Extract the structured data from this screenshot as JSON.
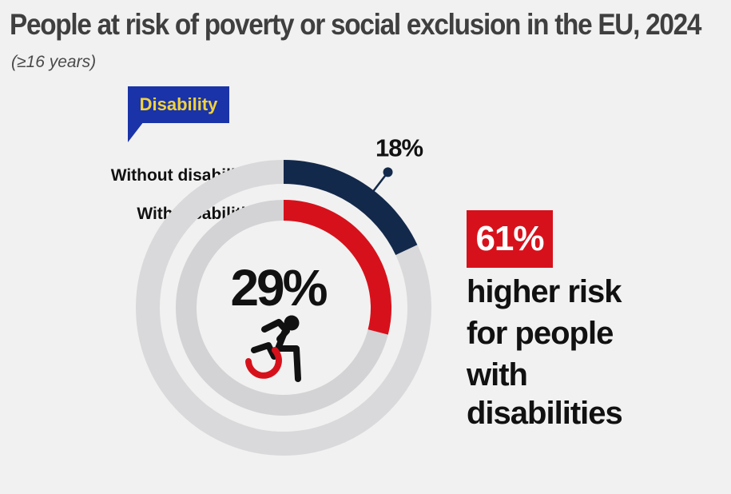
{
  "title": "People at risk of poverty or social exclusion in the EU, 2024",
  "subtitle": "(≥16 years)",
  "tag": "Disability",
  "highlight_value": "61%",
  "highlight_text": [
    "higher risk",
    "for people",
    "with",
    "disabilities"
  ],
  "colors": {
    "without": "#13294b",
    "with": "#d7111b",
    "track_outer": "#d9d9db",
    "track_inner": "#d3d3d5",
    "highlight": "#d7111b",
    "tag": "#1a33a8"
  },
  "chart_data": {
    "type": "pie",
    "title": "People at risk of poverty or social exclusion in the EU, 2024",
    "subtitle": "(≥16 years)",
    "series": [
      {
        "name": "Without disabilities",
        "value": 18,
        "unit": "%",
        "label": "18%"
      },
      {
        "name": "With disabilities",
        "value": 29,
        "unit": "%",
        "label": "29%"
      }
    ],
    "max": 100,
    "annotation": "61% higher risk for people with disabilities"
  }
}
